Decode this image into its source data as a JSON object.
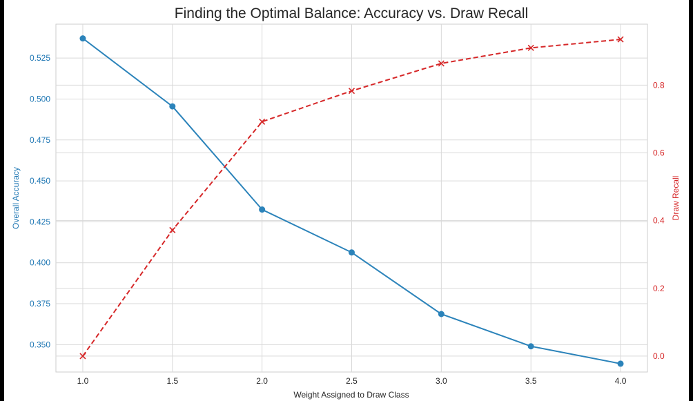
{
  "chart_data": {
    "type": "line",
    "title": "Finding the Optimal Balance: Accuracy vs. Draw Recall",
    "xlabel": "Weight Assigned to Draw Class",
    "x": [
      1.0,
      1.5,
      2.0,
      2.5,
      3.0,
      3.5,
      4.0
    ],
    "x_ticks": [
      "1.0",
      "1.5",
      "2.0",
      "2.5",
      "3.0",
      "3.5",
      "4.0"
    ],
    "xlim": [
      0.85,
      4.15
    ],
    "grid": true,
    "left_axis": {
      "label": "Overall Accuracy",
      "color": "#1f77b4",
      "ylim": [
        0.3333,
        0.5457
      ],
      "ticks": [
        "0.350",
        "0.375",
        "0.400",
        "0.425",
        "0.450",
        "0.475",
        "0.500",
        "0.525"
      ]
    },
    "right_axis": {
      "label": "Draw Recall",
      "color": "#d62728",
      "ylim": [
        -0.047,
        0.98
      ],
      "ticks": [
        "0.0",
        "0.2",
        "0.4",
        "0.6",
        "0.8"
      ]
    },
    "series": [
      {
        "axis": "left",
        "color": "#2b83ba",
        "marker": "circle",
        "linestyle": "solid",
        "values": [
          0.537,
          0.4955,
          0.4325,
          0.4063,
          0.3687,
          0.349,
          0.3384
        ]
      },
      {
        "axis": "right",
        "color": "#d62728",
        "marker": "x",
        "linestyle": "dashed",
        "values": [
          0.0,
          0.372,
          0.692,
          0.783,
          0.864,
          0.91,
          0.935
        ]
      }
    ]
  }
}
